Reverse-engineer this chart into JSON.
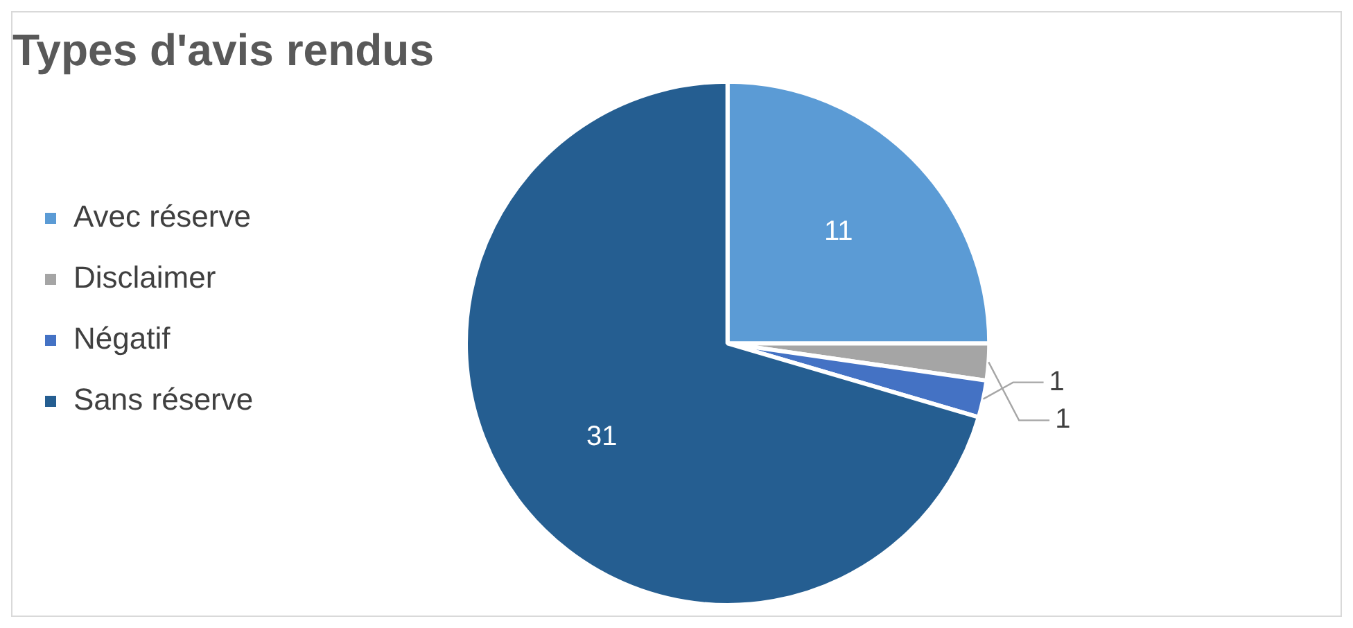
{
  "chart_data": {
    "type": "pie",
    "title": "Types d'avis rendus",
    "categories": [
      "Avec réserve",
      "Disclaimer",
      "Négatif",
      "Sans réserve"
    ],
    "values": [
      11,
      1,
      1,
      31
    ],
    "colors": [
      "#5b9bd5",
      "#a5a5a5",
      "#4472c4",
      "#255e91"
    ],
    "legend": "left",
    "data_labels": true
  }
}
